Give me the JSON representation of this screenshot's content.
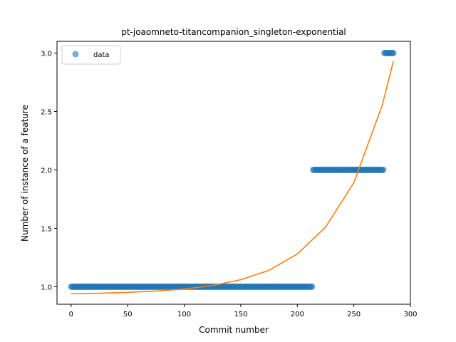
{
  "chart_data": {
    "type": "scatter",
    "title": "pt-joaomneto-titancompanion_singleton-exponential",
    "xlabel": "Commit number",
    "ylabel": "Number of instance of a feature",
    "xlim": [
      -12.5,
      300
    ],
    "ylim": [
      0.85,
      3.1
    ],
    "x_ticks": [
      0,
      50,
      100,
      150,
      200,
      250,
      300
    ],
    "y_ticks": [
      1.0,
      1.5,
      2.0,
      2.5,
      3.0
    ],
    "x_tick_labels": [
      "0",
      "50",
      "100",
      "150",
      "200",
      "250",
      "300"
    ],
    "y_tick_labels": [
      "1.0",
      "1.5",
      "2.0",
      "2.5",
      "3.0"
    ],
    "grid": false,
    "legend": {
      "position": "top-left",
      "entries": [
        "data"
      ]
    },
    "series": [
      {
        "name": "data",
        "kind": "points",
        "color": "#1f77b4",
        "segments": [
          {
            "x_start": 0,
            "x_end": 213,
            "y": 1
          },
          {
            "x_start": 214,
            "x_end": 276,
            "y": 2
          },
          {
            "x_start": 277,
            "x_end": 285,
            "y": 3
          }
        ]
      },
      {
        "kind": "fit",
        "color": "#ff7f0e",
        "x": [
          0,
          25,
          50,
          75,
          100,
          125,
          150,
          175,
          200,
          225,
          250,
          275,
          285
        ],
        "y": [
          0.94,
          0.944,
          0.952,
          0.963,
          0.98,
          1.01,
          1.06,
          1.14,
          1.28,
          1.51,
          1.89,
          2.55,
          2.93
        ]
      }
    ]
  }
}
